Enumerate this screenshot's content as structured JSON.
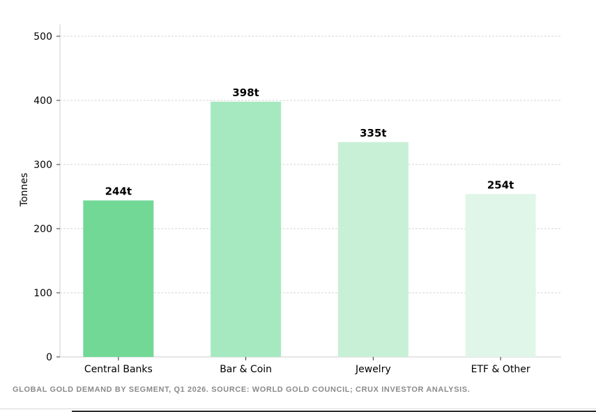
{
  "chart_data": {
    "type": "bar",
    "categories": [
      "Central Banks",
      "Bar & Coin",
      "Jewelry",
      "ETF & Other"
    ],
    "values": [
      244,
      398,
      335,
      254
    ],
    "data_labels": [
      "244t",
      "398t",
      "335t",
      "254t"
    ],
    "colors": [
      "#72d896",
      "#a6e9c1",
      "#c8f0d6",
      "#e0f6e9"
    ],
    "ylabel": "Tonnes",
    "xlabel": "",
    "ylim": [
      0,
      500
    ],
    "yticks": [
      0,
      100,
      200,
      300,
      400,
      500
    ],
    "grid": "y-dashed",
    "legend": "none"
  },
  "caption": "Global gold demand by segment, Q1 2026. Source: World Gold Council; Crux Investor analysis."
}
